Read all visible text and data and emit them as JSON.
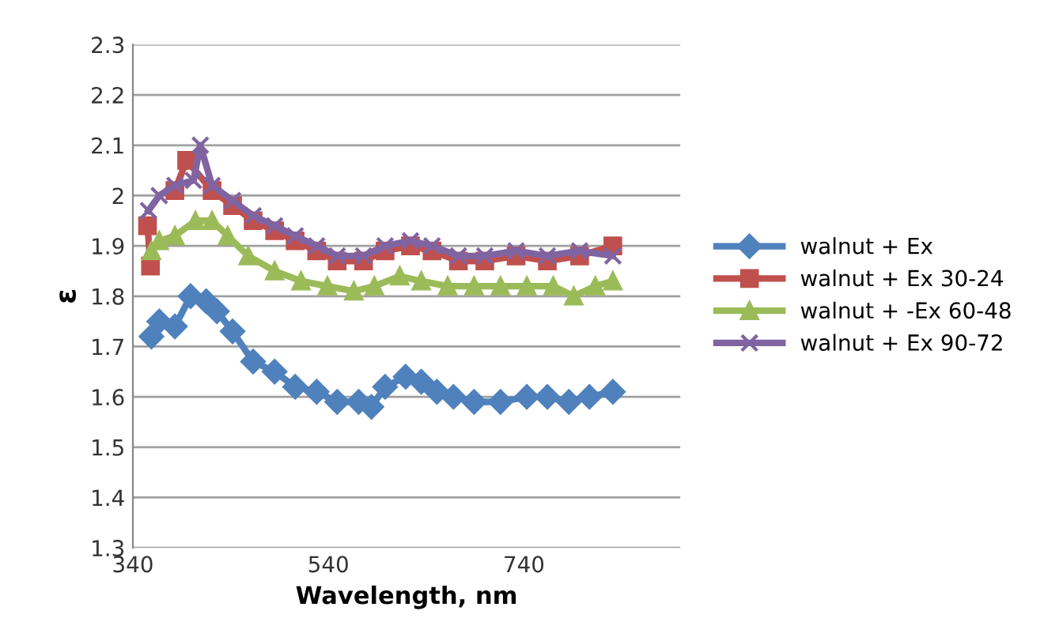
{
  "chart_data": {
    "type": "line",
    "xlabel": "Wavelength, nm",
    "ylabel": "ε",
    "xlim": [
      340,
      900
    ],
    "xticks": [
      340,
      540,
      740
    ],
    "ylim": [
      1.3,
      2.3
    ],
    "yticks": [
      1.3,
      1.4,
      1.5,
      1.6,
      1.7,
      1.8,
      1.9,
      2,
      2.1,
      2.2,
      2.3
    ],
    "grid": "y",
    "legend": "right",
    "line_style": "solid",
    "series": [
      {
        "name": "walnut + Ex",
        "color": "#4f81bd",
        "marker": "diamond",
        "x": [
          359,
          367,
          383,
          399,
          415,
          426,
          442,
          463,
          485,
          506,
          528,
          549,
          571,
          584,
          598,
          619,
          635,
          651,
          668,
          689,
          716,
          743,
          764,
          786,
          807,
          831
        ],
        "values": [
          1.72,
          1.75,
          1.74,
          1.8,
          1.79,
          1.77,
          1.73,
          1.67,
          1.65,
          1.62,
          1.61,
          1.59,
          1.59,
          1.58,
          1.62,
          1.64,
          1.63,
          1.61,
          1.6,
          1.59,
          1.59,
          1.6,
          1.6,
          1.59,
          1.6,
          1.61
        ]
      },
      {
        "name": "walnut + Ex 30-24",
        "color": "#c0504d",
        "marker": "square",
        "x": [
          355,
          358,
          367,
          383,
          395,
          421,
          442,
          463,
          485,
          506,
          528,
          549,
          576,
          598,
          624,
          646,
          673,
          700,
          732,
          764,
          797,
          831
        ],
        "values": [
          1.94,
          1.86,
          null,
          2.01,
          2.07,
          2.01,
          1.98,
          1.95,
          1.93,
          1.91,
          1.89,
          1.87,
          1.87,
          1.89,
          1.9,
          1.89,
          1.87,
          1.87,
          1.88,
          1.87,
          1.88,
          1.9
        ]
      },
      {
        "name": "walnut + -Ex 60-48",
        "color": "#9bbb59",
        "marker": "triangle",
        "x": [
          359,
          367,
          383,
          404,
          421,
          437,
          458,
          485,
          512,
          539,
          566,
          587,
          613,
          635,
          662,
          689,
          716,
          743,
          770,
          791,
          813,
          831
        ],
        "values": [
          1.89,
          1.91,
          1.92,
          1.95,
          1.95,
          1.92,
          1.88,
          1.85,
          1.83,
          1.82,
          1.81,
          1.82,
          1.84,
          1.83,
          1.82,
          1.82,
          1.82,
          1.82,
          1.82,
          1.8,
          1.82,
          1.83
        ]
      },
      {
        "name": "walnut + Ex 90-72",
        "color": "#8064a2",
        "marker": "cross",
        "x": [
          356,
          367,
          383,
          402,
          409,
          421,
          442,
          463,
          485,
          506,
          528,
          549,
          576,
          598,
          624,
          646,
          673,
          700,
          732,
          764,
          797,
          831
        ],
        "values": [
          1.97,
          2.0,
          2.02,
          2.03,
          2.1,
          2.02,
          1.99,
          1.96,
          1.94,
          1.92,
          1.9,
          1.88,
          1.88,
          1.9,
          1.91,
          1.9,
          1.88,
          1.88,
          1.89,
          1.88,
          1.89,
          1.88
        ]
      }
    ]
  }
}
